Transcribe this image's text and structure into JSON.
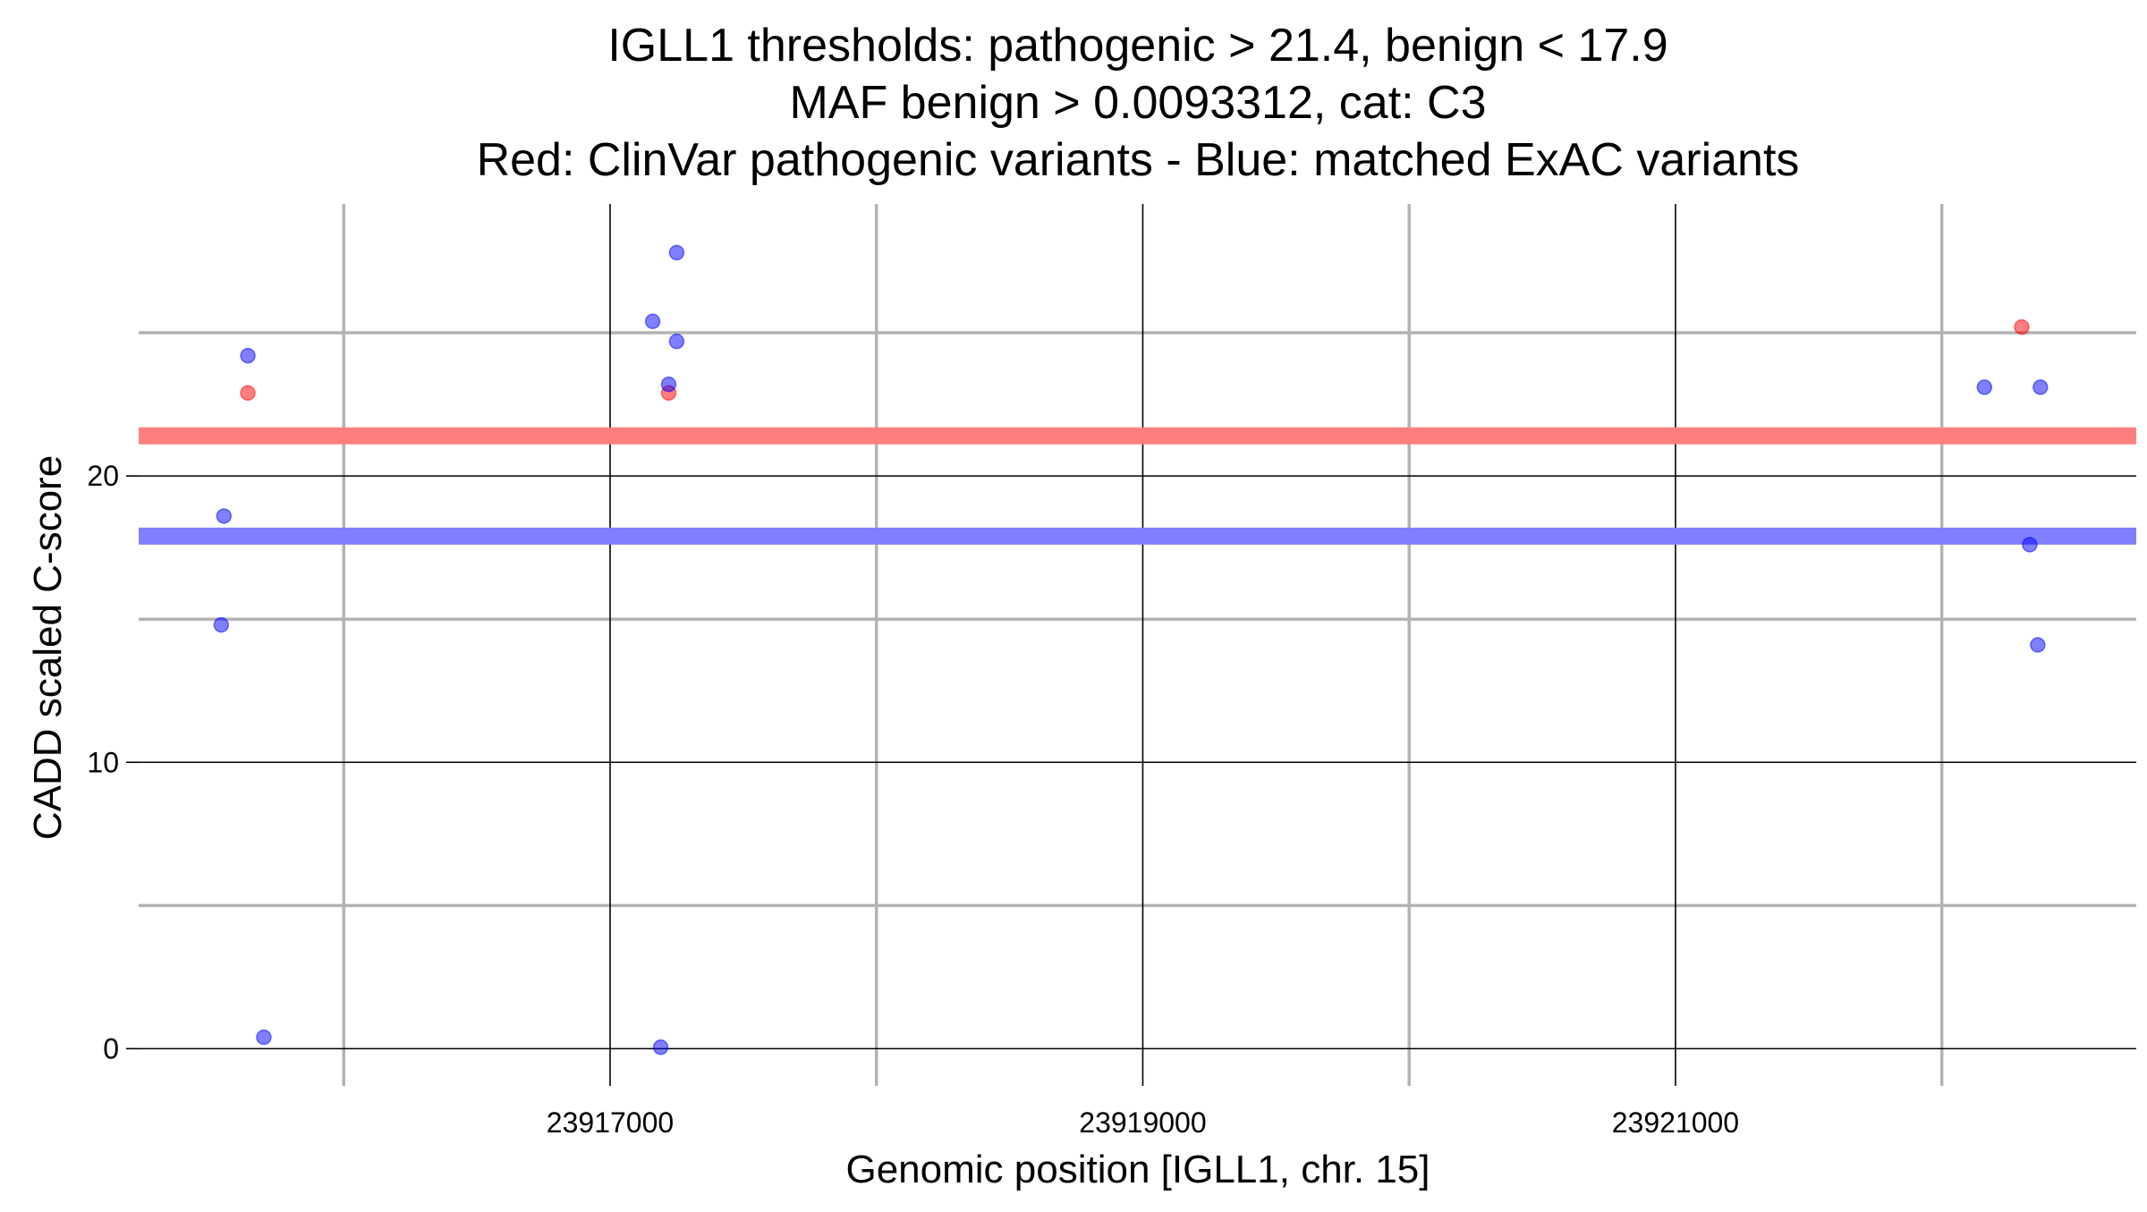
{
  "chart_data": {
    "type": "scatter",
    "title": [
      "IGLL1 thresholds: pathogenic > 21.4, benign < 17.9",
      "MAF benign > 0.0093312, cat: C3",
      "Red: ClinVar pathogenic variants - Blue: matched ExAC variants"
    ],
    "xlabel": "Genomic position [IGLL1, chr. 15]",
    "ylabel": "CADD scaled C-score",
    "xlim": [
      23915230,
      23922730
    ],
    "ylim": [
      -1.3,
      29.5
    ],
    "x_major_ticks": [
      23917000,
      23919000,
      23921000
    ],
    "x_tick_labels": [
      "23917000",
      "23919000",
      "23921000"
    ],
    "x_minor_ticks": [
      23916000,
      23918000,
      23920000,
      23922000
    ],
    "y_major_ticks": [
      0,
      10,
      20
    ],
    "y_tick_labels": [
      "0",
      "10",
      "20"
    ],
    "y_minor_ticks": [
      5,
      15,
      25
    ],
    "grid": true,
    "thresholds": [
      {
        "label": "pathogenic",
        "value": 21.4,
        "color": "#ff7f7f"
      },
      {
        "label": "benign",
        "value": 17.9,
        "color": "#7f7fff"
      }
    ],
    "series": [
      {
        "color": "#ff0000",
        "x": [
          23915640,
          23917220,
          23922300
        ],
        "y": [
          22.9,
          22.9,
          25.2
        ]
      },
      {
        "color": "#0000ff",
        "x": [
          23915540,
          23915550,
          23915640,
          23915700,
          23917160,
          23917190,
          23917220,
          23917250,
          23917250,
          23922160,
          23922330,
          23922360,
          23922370
        ],
        "y": [
          14.8,
          18.6,
          24.2,
          0.4,
          25.4,
          0.05,
          23.2,
          27.8,
          24.7,
          23.1,
          17.6,
          14.1,
          23.1
        ]
      }
    ],
    "legend": "none"
  }
}
